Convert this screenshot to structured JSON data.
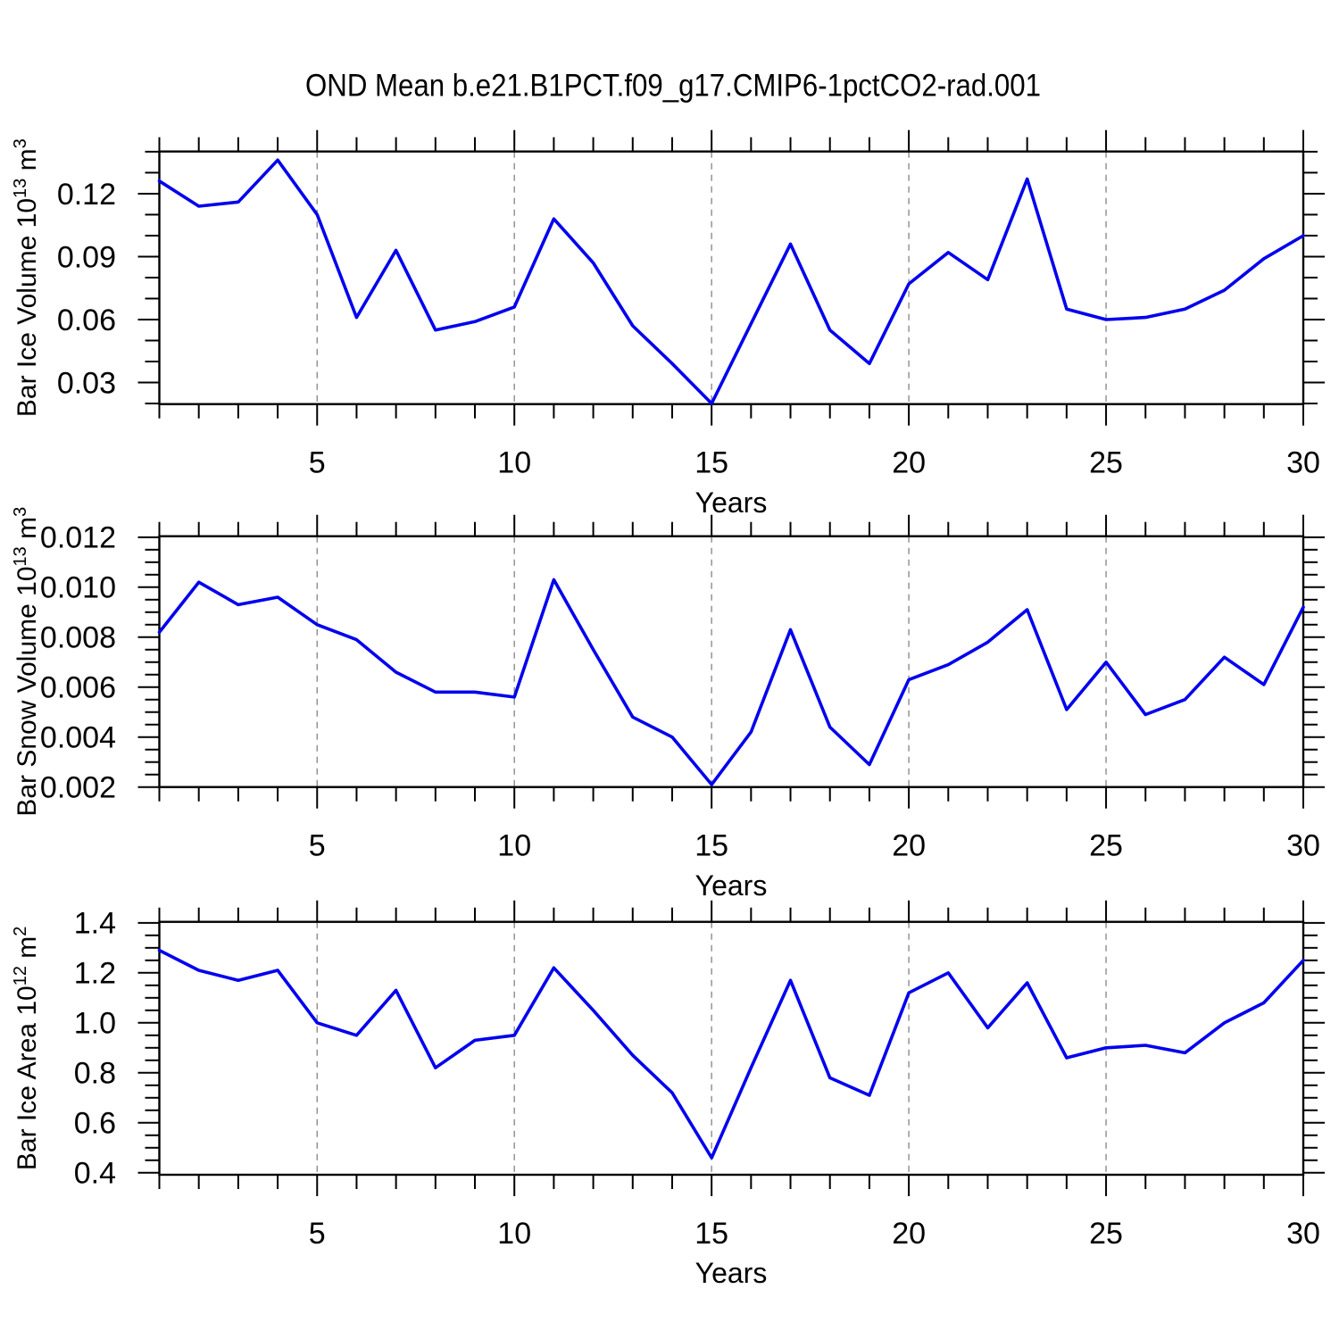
{
  "title": "OND Mean b.e21.B1PCT.f09_g17.CMIP6-1pctCO2-rad.001",
  "colors": {
    "line": "#0000ee",
    "grid": "#8c8c8c",
    "axis": "#000000",
    "background": "#ffffff"
  },
  "chart_data": [
    {
      "type": "line",
      "name": "bar-ice-volume",
      "ylabel_parts": [
        {
          "t": "Bar Ice Volume 10",
          "sup": false
        },
        {
          "t": "13",
          "sup": true
        },
        {
          "t": " m",
          "sup": false
        },
        {
          "t": "3",
          "sup": true
        }
      ],
      "xlabel": "Years",
      "x": [
        1,
        2,
        3,
        4,
        5,
        6,
        7,
        8,
        9,
        10,
        11,
        12,
        13,
        14,
        15,
        16,
        17,
        18,
        19,
        20,
        21,
        22,
        23,
        24,
        25,
        26,
        27,
        28,
        29,
        30
      ],
      "values": [
        0.126,
        0.114,
        0.116,
        0.136,
        0.11,
        0.061,
        0.093,
        0.055,
        0.059,
        0.066,
        0.108,
        0.087,
        0.057,
        0.039,
        0.02,
        0.058,
        0.096,
        0.055,
        0.039,
        0.077,
        0.092,
        0.079,
        0.127,
        0.065,
        0.06,
        0.061,
        0.065,
        0.074,
        0.089,
        0.1
      ],
      "xlim": [
        1,
        30
      ],
      "ylim": [
        0.0197,
        0.1401
      ],
      "xticks": [
        5,
        10,
        15,
        20,
        25,
        30
      ],
      "xtick_labels": [
        "5",
        "10",
        "15",
        "20",
        "25",
        "30"
      ],
      "xminor_step": 1,
      "grid_x": [
        5,
        10,
        15,
        20,
        25
      ],
      "yticks": [
        0.03,
        0.06,
        0.09,
        0.12
      ],
      "ytick_labels": [
        "0.03",
        "0.06",
        "0.09",
        "0.12"
      ],
      "yminor_start": 0.02,
      "yminor_step": 0.01
    },
    {
      "type": "line",
      "name": "bar-snow-volume",
      "ylabel_parts": [
        {
          "t": "Bar Snow Volume 10",
          "sup": false
        },
        {
          "t": "13",
          "sup": true
        },
        {
          "t": " m",
          "sup": false
        },
        {
          "t": "3",
          "sup": true
        }
      ],
      "xlabel": "Years",
      "x": [
        1,
        2,
        3,
        4,
        5,
        6,
        7,
        8,
        9,
        10,
        11,
        12,
        13,
        14,
        15,
        16,
        17,
        18,
        19,
        20,
        21,
        22,
        23,
        24,
        25,
        26,
        27,
        28,
        29,
        30
      ],
      "values": [
        0.0082,
        0.0102,
        0.0093,
        0.0096,
        0.0085,
        0.0079,
        0.0066,
        0.0058,
        0.0058,
        0.0056,
        0.0103,
        0.0075,
        0.0048,
        0.004,
        0.0021,
        0.0042,
        0.0083,
        0.0044,
        0.0029,
        0.0063,
        0.0069,
        0.0078,
        0.0091,
        0.0051,
        0.007,
        0.0049,
        0.0055,
        0.0072,
        0.0061,
        0.0092
      ],
      "xlim": [
        1,
        30
      ],
      "ylim": [
        0.002,
        0.01204
      ],
      "xticks": [
        5,
        10,
        15,
        20,
        25,
        30
      ],
      "xtick_labels": [
        "5",
        "10",
        "15",
        "20",
        "25",
        "30"
      ],
      "xminor_step": 1,
      "grid_x": [
        5,
        10,
        15,
        20,
        25
      ],
      "yticks": [
        0.002,
        0.004,
        0.006,
        0.008,
        0.01,
        0.012
      ],
      "ytick_labels": [
        "0.002",
        "0.004",
        "0.006",
        "0.008",
        "0.010",
        "0.012"
      ],
      "yminor_start": 0.002,
      "yminor_step": 0.0005
    },
    {
      "type": "line",
      "name": "bar-ice-area",
      "ylabel_parts": [
        {
          "t": "Bar Ice Area 10",
          "sup": false
        },
        {
          "t": "12",
          "sup": true
        },
        {
          "t": " m",
          "sup": false
        },
        {
          "t": "2",
          "sup": true
        }
      ],
      "xlabel": "Years",
      "x": [
        1,
        2,
        3,
        4,
        5,
        6,
        7,
        8,
        9,
        10,
        11,
        12,
        13,
        14,
        15,
        16,
        17,
        18,
        19,
        20,
        21,
        22,
        23,
        24,
        25,
        26,
        27,
        28,
        29,
        30
      ],
      "values": [
        1.29,
        1.21,
        1.17,
        1.21,
        1.0,
        0.95,
        1.13,
        0.82,
        0.93,
        0.95,
        1.22,
        1.05,
        0.87,
        0.72,
        0.46,
        0.82,
        1.17,
        0.78,
        0.71,
        1.12,
        1.2,
        0.98,
        1.16,
        0.86,
        0.9,
        0.91,
        0.88,
        1.0,
        1.08,
        1.25
      ],
      "xlim": [
        1,
        30
      ],
      "ylim": [
        0.392,
        1.404
      ],
      "xticks": [
        5,
        10,
        15,
        20,
        25,
        30
      ],
      "xtick_labels": [
        "5",
        "10",
        "15",
        "20",
        "25",
        "30"
      ],
      "xminor_step": 1,
      "grid_x": [
        5,
        10,
        15,
        20,
        25
      ],
      "yticks": [
        0.4,
        0.6,
        0.8,
        1.0,
        1.2,
        1.4
      ],
      "ytick_labels": [
        "0.4",
        "0.6",
        "0.8",
        "1.0",
        "1.2",
        "1.4"
      ],
      "yminor_start": 0.4,
      "yminor_step": 0.05
    }
  ]
}
